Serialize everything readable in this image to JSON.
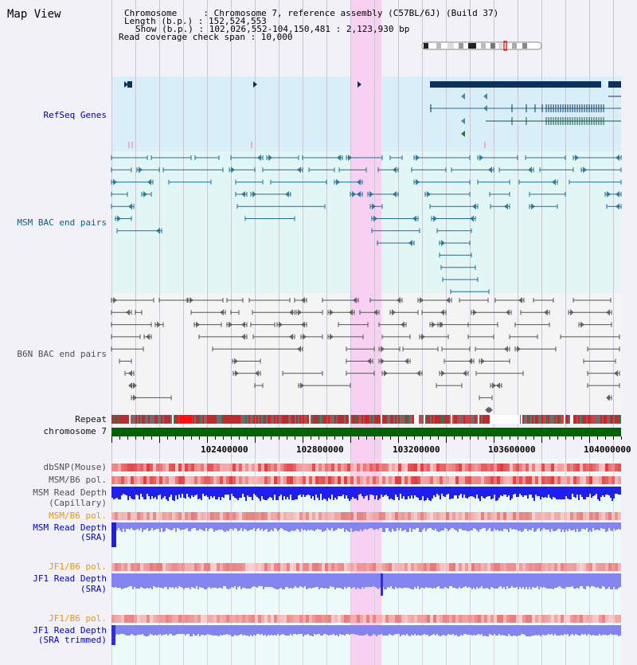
{
  "header": {
    "title": "Map View",
    "info_lines": [
      "Chromosome     : Chromosome 7, reference assembly (C57BL/6J) (Build 37)",
      "Length (b.p.) : 152,524,553",
      "Show (b.p.) : 102,026,552-104,150,481 : 2,123,930 bp",
      "Read coverage check span : 10,000"
    ]
  },
  "tracks": {
    "refseq": "RefSeq Genes",
    "msm_bac": "MSM BAC end pairs",
    "b6n_bac": "B6N BAC end pairs",
    "repeat": "Repeat",
    "chromosome": "chromosome 7",
    "dbsnp": "dbSNP(Mouse)",
    "msm_b6_pol": "MSM/B6 pol.",
    "msm_depth_cap_1": "MSM Read Depth",
    "msm_depth_cap_2": "(Capillary)",
    "msm_b6_pol2": "MSM/B6 pol.",
    "msm_depth_sra_1": "MSM Read Depth",
    "msm_depth_sra_2": "(SRA)",
    "jf1_b6_pol": "JF1/B6 pol.",
    "jf1_depth_sra_1": "JF1 Read Depth",
    "jf1_depth_sra_2": "(SRA)",
    "jf1_b6_pol2": "JF1/B6 pol.",
    "jf1_depth_trim_1": "JF1 Read Depth",
    "jf1_depth_trim_2": "(SRA trimmed)"
  },
  "axis": {
    "ticks": [
      "102400000",
      "102800000",
      "103200000",
      "103600000",
      "104000000"
    ]
  },
  "colors": {
    "highlight": "#f7d0f2",
    "refseq_bg": "#d8eef9",
    "msm_bg": "#e2f6f6",
    "gene": "#0c3060",
    "msm_pair": "#1f6f8f",
    "b6n_pair": "#555555",
    "chromosome": "#006400",
    "depth_capillary": "#1e1ef0",
    "depth_sra": "#8484f0"
  }
}
